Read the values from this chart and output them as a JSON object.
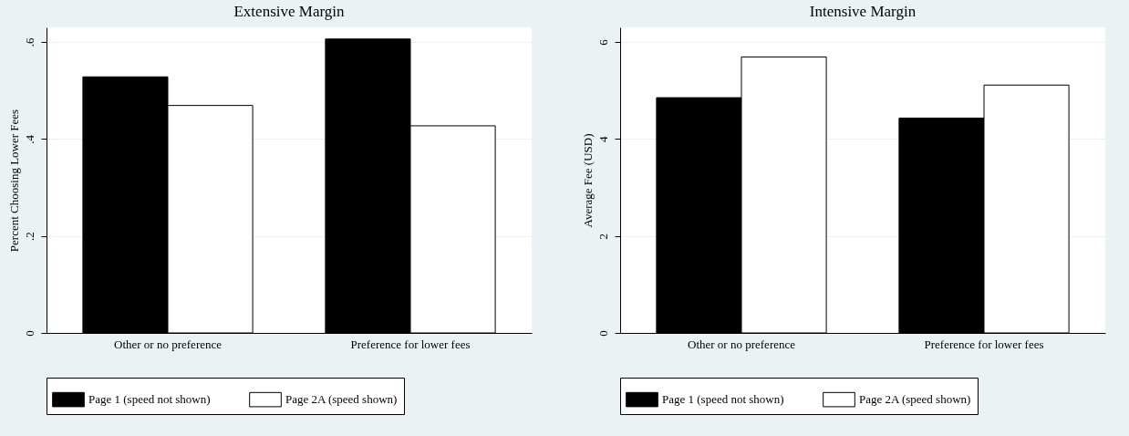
{
  "chart_data": [
    {
      "type": "bar",
      "title": "Extensive Margin",
      "ylabel": "Percent Choosing Lower Fees",
      "categories": [
        "Other or no preference",
        "Preference for lower fees"
      ],
      "series": [
        {
          "name": "Page 1 (speed not shown)",
          "color": "#000000",
          "values": [
            0.528,
            0.606
          ]
        },
        {
          "name": "Page 2A (speed shown)",
          "color": "#ffffff",
          "values": [
            0.469,
            0.427
          ]
        }
      ],
      "ylim": [
        0,
        0.63
      ],
      "yticks": [
        0,
        {
          "value": 0.2,
          "label": ".2"
        },
        {
          "value": 0.4,
          "label": ".4"
        },
        {
          "value": 0.6,
          "label": ".6"
        }
      ],
      "grid": "y",
      "legend": "bottom"
    },
    {
      "type": "bar",
      "title": "Intensive Margin",
      "ylabel": "Average Fee (USD)",
      "categories": [
        "Other or no preference",
        "Preference for lower fees"
      ],
      "series": [
        {
          "name": "Page 1 (speed not shown)",
          "color": "#000000",
          "values": [
            4.85,
            4.43
          ]
        },
        {
          "name": "Page 2A (speed shown)",
          "color": "#ffffff",
          "values": [
            5.69,
            5.11
          ]
        }
      ],
      "ylim": [
        0,
        6.3
      ],
      "yticks": [
        0,
        2,
        4,
        6
      ],
      "grid": "y",
      "legend": "bottom"
    }
  ]
}
